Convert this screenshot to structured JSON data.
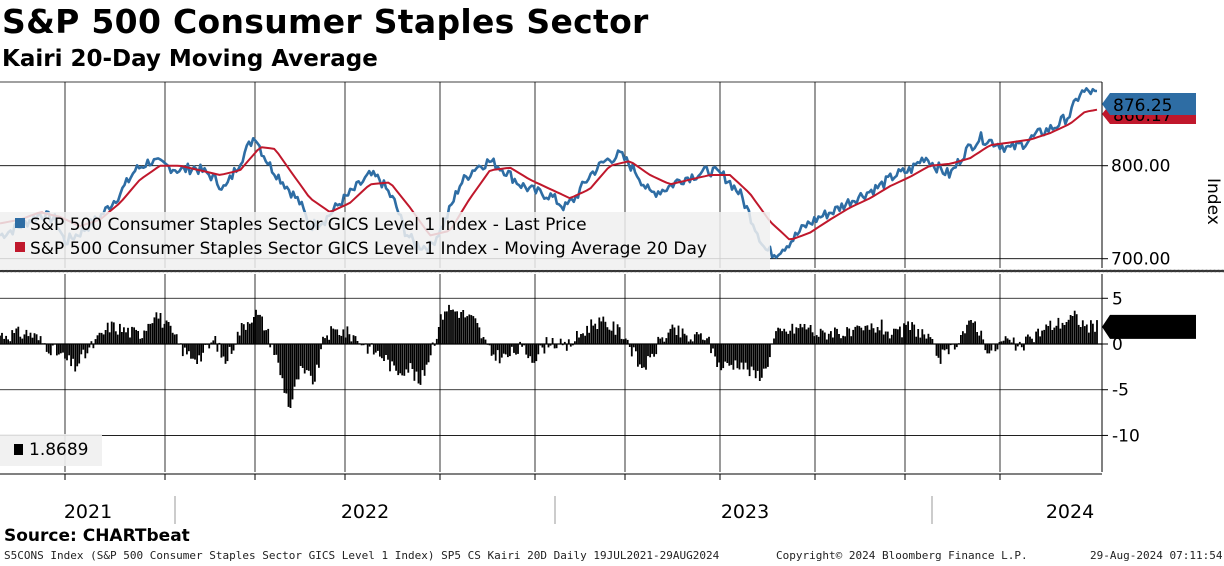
{
  "header": {
    "title": "S&P 500 Consumer Staples Sector",
    "subtitle": "Kairi 20-Day Moving Average"
  },
  "footer": {
    "source": "Source: CHARTbeat",
    "info": "S5CONS Index (S&P 500 Consumer Staples Sector GICS Level 1 Index) SP5 CS Kairi 20D  Daily 19JUL2021-29AUG2024",
    "copyright": "Copyright© 2024 Bloomberg Finance L.P.",
    "timestamp": "29-Aug-2024 07:11:54"
  },
  "colors": {
    "price": "#2e6da4",
    "ma": "#c0182c",
    "kairi": "#000000",
    "grid": "#000000"
  },
  "chart_data": [
    {
      "type": "line",
      "title": "S&P 500 Consumer Staples Sector",
      "ylabel": "Index",
      "ylim": [
        690,
        890
      ],
      "yticks": [
        700,
        800
      ],
      "ytick_labels": [
        "700.00",
        "800.00"
      ],
      "x_range": [
        "2021-07-19",
        "2024-08-29"
      ],
      "x_year_labels": [
        "2021",
        "2022",
        "2023",
        "2024"
      ],
      "grid": true,
      "legend_position": "bottom-left",
      "series": [
        {
          "name": "S&P 500 Consumer Staples Sector GICS Level 1 Index - Last Price",
          "color": "#2e6da4",
          "last_label": "876.25",
          "points": [
            [
              0,
              725
            ],
            [
              0.02,
              735
            ],
            [
              0.04,
              748
            ],
            [
              0.055,
              742
            ],
            [
              0.065,
              718
            ],
            [
              0.08,
              728
            ],
            [
              0.1,
              745
            ],
            [
              0.12,
              770
            ],
            [
              0.135,
              795
            ],
            [
              0.15,
              805
            ],
            [
              0.165,
              800
            ],
            [
              0.18,
              795
            ],
            [
              0.195,
              798
            ],
            [
              0.21,
              790
            ],
            [
              0.225,
              775
            ],
            [
              0.24,
              805
            ],
            [
              0.255,
              833
            ],
            [
              0.262,
              815
            ],
            [
              0.27,
              800
            ],
            [
              0.285,
              780
            ],
            [
              0.3,
              760
            ],
            [
              0.31,
              735
            ],
            [
              0.325,
              742
            ],
            [
              0.34,
              760
            ],
            [
              0.355,
              775
            ],
            [
              0.37,
              790
            ],
            [
              0.38,
              785
            ],
            [
              0.395,
              760
            ],
            [
              0.405,
              730
            ],
            [
              0.415,
              715
            ],
            [
              0.43,
              712
            ],
            [
              0.445,
              740
            ],
            [
              0.46,
              780
            ],
            [
              0.475,
              798
            ],
            [
              0.49,
              805
            ],
            [
              0.505,
              795
            ],
            [
              0.52,
              780
            ],
            [
              0.535,
              772
            ],
            [
              0.55,
              768
            ],
            [
              0.565,
              755
            ],
            [
              0.575,
              765
            ],
            [
              0.59,
              790
            ],
            [
              0.605,
              805
            ],
            [
              0.62,
              812
            ],
            [
              0.635,
              795
            ],
            [
              0.65,
              770
            ],
            [
              0.665,
              775
            ],
            [
              0.68,
              785
            ],
            [
              0.695,
              790
            ],
            [
              0.71,
              795
            ],
            [
              0.725,
              788
            ],
            [
              0.74,
              770
            ],
            [
              0.755,
              735
            ],
            [
              0.765,
              710
            ],
            [
              0.775,
              705
            ],
            [
              0.79,
              718
            ],
            [
              0.805,
              735
            ],
            [
              0.82,
              745
            ],
            [
              0.835,
              752
            ],
            [
              0.85,
              762
            ],
            [
              0.865,
              770
            ],
            [
              0.88,
              778
            ],
            [
              0.895,
              790
            ],
            [
              0.91,
              795
            ],
            [
              0.925,
              810
            ],
            [
              0.935,
              800
            ],
            [
              0.95,
              790
            ],
            [
              0.965,
              815
            ],
            [
              0.98,
              830
            ],
            [
              0.995,
              825
            ],
            [
              1.01,
              818
            ],
            [
              1.025,
              825
            ],
            [
              1.04,
              835
            ],
            [
              1.055,
              842
            ],
            [
              1.07,
              855
            ],
            [
              1.08,
              878
            ],
            [
              1.09,
              880
            ],
            [
              1.097,
              876.25
            ]
          ]
        },
        {
          "name": "S&P 500 Consumer Staples Sector GICS Level 1 Index - Moving Average 20 Day",
          "color": "#c0182c",
          "last_label": "860.17",
          "points": [
            [
              0,
              738
            ],
            [
              0.02,
              742
            ],
            [
              0.04,
              750
            ],
            [
              0.06,
              745
            ],
            [
              0.08,
              735
            ],
            [
              0.1,
              742
            ],
            [
              0.12,
              760
            ],
            [
              0.14,
              785
            ],
            [
              0.16,
              800
            ],
            [
              0.18,
              800
            ],
            [
              0.2,
              795
            ],
            [
              0.22,
              790
            ],
            [
              0.24,
              795
            ],
            [
              0.26,
              820
            ],
            [
              0.275,
              818
            ],
            [
              0.29,
              795
            ],
            [
              0.31,
              765
            ],
            [
              0.33,
              750
            ],
            [
              0.35,
              760
            ],
            [
              0.37,
              780
            ],
            [
              0.39,
              782
            ],
            [
              0.41,
              755
            ],
            [
              0.43,
              725
            ],
            [
              0.45,
              730
            ],
            [
              0.47,
              765
            ],
            [
              0.49,
              795
            ],
            [
              0.51,
              798
            ],
            [
              0.53,
              785
            ],
            [
              0.55,
              775
            ],
            [
              0.57,
              765
            ],
            [
              0.59,
              775
            ],
            [
              0.61,
              800
            ],
            [
              0.63,
              805
            ],
            [
              0.65,
              790
            ],
            [
              0.67,
              780
            ],
            [
              0.69,
              785
            ],
            [
              0.71,
              790
            ],
            [
              0.73,
              790
            ],
            [
              0.75,
              770
            ],
            [
              0.77,
              740
            ],
            [
              0.79,
              720
            ],
            [
              0.81,
              728
            ],
            [
              0.83,
              742
            ],
            [
              0.85,
              755
            ],
            [
              0.87,
              765
            ],
            [
              0.89,
              778
            ],
            [
              0.91,
              788
            ],
            [
              0.93,
              800
            ],
            [
              0.95,
              802
            ],
            [
              0.97,
              808
            ],
            [
              0.99,
              822
            ],
            [
              1.01,
              825
            ],
            [
              1.03,
              828
            ],
            [
              1.05,
              835
            ],
            [
              1.07,
              845
            ],
            [
              1.085,
              858
            ],
            [
              1.097,
              860.17
            ]
          ]
        }
      ]
    },
    {
      "type": "bar",
      "title": "Kairi 20-Day Moving Average",
      "ylim": [
        -14,
        7
      ],
      "yticks": [
        5,
        0,
        -5,
        -10
      ],
      "ytick_labels": [
        "5",
        "0",
        "-5",
        "-10"
      ],
      "grid": true,
      "legend_position": "bottom-left",
      "series": [
        {
          "name": "1.8689",
          "color": "#000000",
          "last_label": "1.8689",
          "anchors": [
            [
              0,
              1.0
            ],
            [
              0.03,
              1.2
            ],
            [
              0.06,
              -1.2
            ],
            [
              0.075,
              -2.5
            ],
            [
              0.09,
              -0.5
            ],
            [
              0.11,
              2.0
            ],
            [
              0.125,
              1.5
            ],
            [
              0.14,
              1.0
            ],
            [
              0.155,
              3.5
            ],
            [
              0.17,
              1.5
            ],
            [
              0.185,
              -1.0
            ],
            [
              0.2,
              -1.5
            ],
            [
              0.215,
              0.5
            ],
            [
              0.225,
              -2.0
            ],
            [
              0.24,
              1.5
            ],
            [
              0.255,
              3.5
            ],
            [
              0.265,
              2.0
            ],
            [
              0.275,
              -1.0
            ],
            [
              0.29,
              -7.0
            ],
            [
              0.3,
              -3.0
            ],
            [
              0.315,
              -4.0
            ],
            [
              0.325,
              1.0
            ],
            [
              0.34,
              1.5
            ],
            [
              0.355,
              0.8
            ],
            [
              0.37,
              -0.5
            ],
            [
              0.385,
              -1.5
            ],
            [
              0.395,
              -3.0
            ],
            [
              0.41,
              -2.5
            ],
            [
              0.42,
              -4.5
            ],
            [
              0.43,
              -1.0
            ],
            [
              0.445,
              4.0
            ],
            [
              0.46,
              3.5
            ],
            [
              0.475,
              2.5
            ],
            [
              0.49,
              -1.0
            ],
            [
              0.505,
              -1.5
            ],
            [
              0.52,
              -0.5
            ],
            [
              0.535,
              -1.5
            ],
            [
              0.55,
              0.5
            ],
            [
              0.565,
              -0.5
            ],
            [
              0.58,
              1.0
            ],
            [
              0.595,
              2.5
            ],
            [
              0.61,
              2.0
            ],
            [
              0.625,
              1.0
            ],
            [
              0.64,
              -2.5
            ],
            [
              0.65,
              -2.0
            ],
            [
              0.66,
              0.5
            ],
            [
              0.675,
              1.5
            ],
            [
              0.69,
              0.5
            ],
            [
              0.705,
              1.0
            ],
            [
              0.72,
              -2.5
            ],
            [
              0.74,
              -2.0
            ],
            [
              0.755,
              -3.5
            ],
            [
              0.765,
              -3.0
            ],
            [
              0.775,
              1.0
            ],
            [
              0.79,
              1.5
            ],
            [
              0.805,
              2.0
            ],
            [
              0.82,
              1.0
            ],
            [
              0.835,
              1.5
            ],
            [
              0.85,
              1.0
            ],
            [
              0.865,
              1.5
            ],
            [
              0.88,
              2.0
            ],
            [
              0.895,
              0.8
            ],
            [
              0.91,
              2.0
            ],
            [
              0.925,
              1.0
            ],
            [
              0.94,
              -1.5
            ],
            [
              0.95,
              -1.0
            ],
            [
              0.96,
              1.0
            ],
            [
              0.975,
              2.5
            ],
            [
              0.99,
              -1.0
            ],
            [
              1.005,
              0.5
            ],
            [
              1.02,
              -0.5
            ],
            [
              1.035,
              1.0
            ],
            [
              1.05,
              2.0
            ],
            [
              1.065,
              2.5
            ],
            [
              1.075,
              3.0
            ],
            [
              1.085,
              2.0
            ],
            [
              1.097,
              1.8689
            ]
          ]
        }
      ]
    }
  ]
}
